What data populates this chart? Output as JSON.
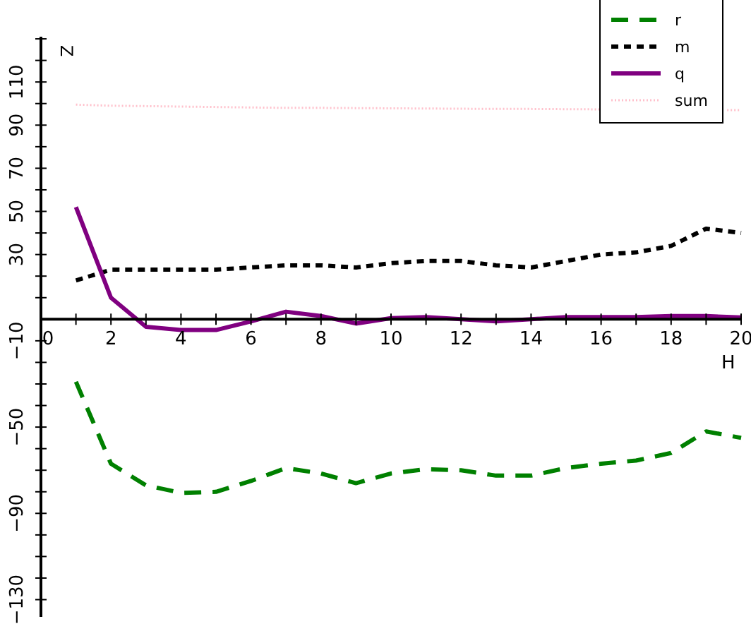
{
  "chart_data": {
    "type": "line",
    "xlabel": "H",
    "ylabel": "Z",
    "x": [
      1,
      2,
      3,
      4,
      5,
      6,
      7,
      8,
      9,
      10,
      11,
      12,
      13,
      14,
      15,
      16,
      17,
      18,
      19,
      20
    ],
    "xlim": [
      0,
      20
    ],
    "ylim": [
      -138,
      131
    ],
    "xticks": [
      0,
      {
        "value": 1,
        "label": null
      },
      2,
      {
        "value": 3,
        "label": null
      },
      4,
      {
        "value": 5,
        "label": null
      },
      6,
      {
        "value": 7,
        "label": null
      },
      8,
      {
        "value": 9,
        "label": null
      },
      10,
      {
        "value": 11,
        "label": null
      },
      12,
      {
        "value": 13,
        "label": null
      },
      14,
      {
        "value": 15,
        "label": null
      },
      16,
      {
        "value": 17,
        "label": null
      },
      18,
      {
        "value": 19,
        "label": null
      },
      20
    ],
    "yticks": [
      -130,
      {
        "value": -120,
        "label": null
      },
      {
        "value": -110,
        "label": null
      },
      {
        "value": -100,
        "label": null
      },
      -90,
      {
        "value": -80,
        "label": null
      },
      {
        "value": -70,
        "label": null
      },
      {
        "value": -60,
        "label": null
      },
      -50,
      {
        "value": -40,
        "label": null
      },
      {
        "value": -30,
        "label": null
      },
      {
        "value": -20,
        "label": null
      },
      -10,
      {
        "value": 10,
        "label": null
      },
      {
        "value": 20,
        "label": null
      },
      30,
      {
        "value": 40,
        "label": null
      },
      50,
      {
        "value": 60,
        "label": null
      },
      70,
      {
        "value": 80,
        "label": null
      },
      90,
      {
        "value": 100,
        "label": null
      },
      110,
      {
        "value": 120,
        "label": null
      },
      {
        "value": 130,
        "label": null
      }
    ],
    "legend": "top right",
    "grid": false,
    "series": [
      {
        "name": "r",
        "color": "#008000",
        "line_style": "dashed",
        "values": [
          -29,
          -67,
          -77,
          -80.5,
          -80,
          -75,
          -69,
          -71.5,
          -76,
          -71.5,
          -69.5,
          -70,
          -72.5,
          -72.5,
          -69,
          -67,
          -65.5,
          -62,
          -52,
          -55
        ]
      },
      {
        "name": "m",
        "color": "#000000",
        "line_style": "dotted",
        "values": [
          18,
          23,
          23,
          23,
          23,
          24,
          25,
          25,
          24,
          26,
          27,
          27,
          25,
          24,
          27,
          30,
          31,
          34,
          42,
          40
        ]
      },
      {
        "name": "q",
        "color": "#800080",
        "line_style": "solid",
        "values": [
          52,
          10,
          -3.5,
          -5,
          -5,
          -1,
          3.5,
          1.5,
          -2,
          0.5,
          1,
          0,
          -1,
          0,
          1,
          1,
          1,
          1.5,
          1.5,
          0.8
        ]
      },
      {
        "name": "sum",
        "color": "#ffc0cb",
        "line_style": "dotted",
        "x": [
          1,
          2,
          3,
          4,
          5,
          6,
          7,
          8,
          9,
          10,
          11,
          12,
          13,
          14,
          15,
          16,
          19.6,
          20
        ],
        "values": [
          99.5,
          99,
          98.8,
          98.6,
          98.4,
          98.2,
          98,
          98,
          97.9,
          97.8,
          97.7,
          97.6,
          97.5,
          97.5,
          97.4,
          97.3,
          97,
          97
        ]
      }
    ]
  }
}
